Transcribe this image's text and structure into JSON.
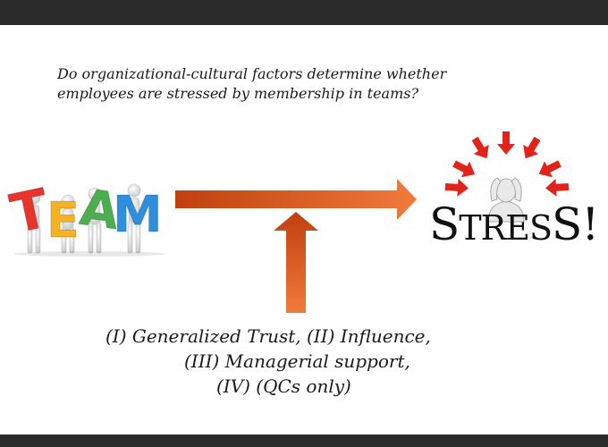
{
  "question": {
    "line1": "Do organizational-cultural factors determine whether",
    "line2": "employees are stressed by membership in teams?"
  },
  "team_image": {
    "letters": [
      "T",
      "E",
      "A",
      "M"
    ],
    "colors": [
      "#e8352c",
      "#f5b324",
      "#4cae4f",
      "#2e8fe0"
    ]
  },
  "stress_image": {
    "text_big_s1": "S",
    "text_small": "TRES",
    "text_big_s2": "S!",
    "burst_color": "#e2231a"
  },
  "arrows": {
    "color_start": "#c0400e",
    "color_end": "#f07a3c"
  },
  "factors": {
    "line1": "(I)  Generalized Trust, (II) Influence,",
    "line2": "(III) Managerial support,",
    "line3": "(IV) (QCs only)"
  }
}
